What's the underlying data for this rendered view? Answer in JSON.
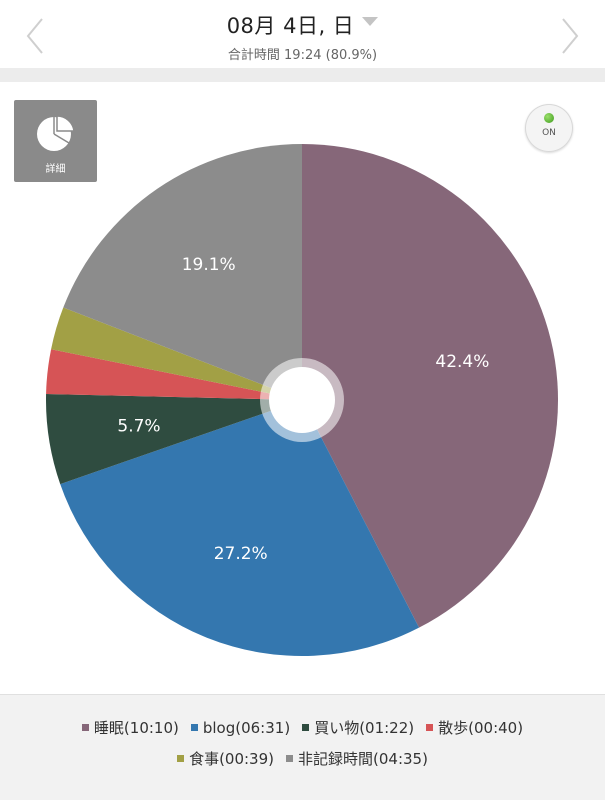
{
  "header": {
    "date": "08月 4日, 日",
    "total": "合計時間 19:24 (80.9%)"
  },
  "toolbar": {
    "detail_label": "詳細",
    "toggle_label": "ON"
  },
  "colors": {
    "sleep": "#866779",
    "blog": "#3477af",
    "shopping": "#2f4c40",
    "walk": "#d65456",
    "meal": "#a2a045",
    "unrecorded": "#8c8c8c"
  },
  "chart_data": {
    "type": "pie",
    "title": "",
    "start_angle_deg": 0,
    "direction": "clockwise",
    "slices": [
      {
        "name": "睡眠",
        "duration": "10:10",
        "label": "睡眠(10:10)",
        "percent": 42.4,
        "percent_label": "42.4%",
        "color": "#866779"
      },
      {
        "name": "blog",
        "duration": "06:31",
        "label": "blog(06:31)",
        "percent": 27.2,
        "percent_label": "27.2%",
        "color": "#3477af"
      },
      {
        "name": "買い物",
        "duration": "01:22",
        "label": "買い物(01:22)",
        "percent": 5.7,
        "percent_label": "5.7%",
        "color": "#2f4c40"
      },
      {
        "name": "散歩",
        "duration": "00:40",
        "label": "散歩(00:40)",
        "percent": 2.8,
        "percent_label": "",
        "color": "#d65456"
      },
      {
        "name": "食事",
        "duration": "00:39",
        "label": "食事(00:39)",
        "percent": 2.7,
        "percent_label": "",
        "color": "#a2a045"
      },
      {
        "name": "非記録時間",
        "duration": "04:35",
        "label": "非記録時間(04:35)",
        "percent": 19.1,
        "percent_label": "19.1%",
        "color": "#8c8c8c"
      }
    ],
    "legend_position": "bottom"
  }
}
